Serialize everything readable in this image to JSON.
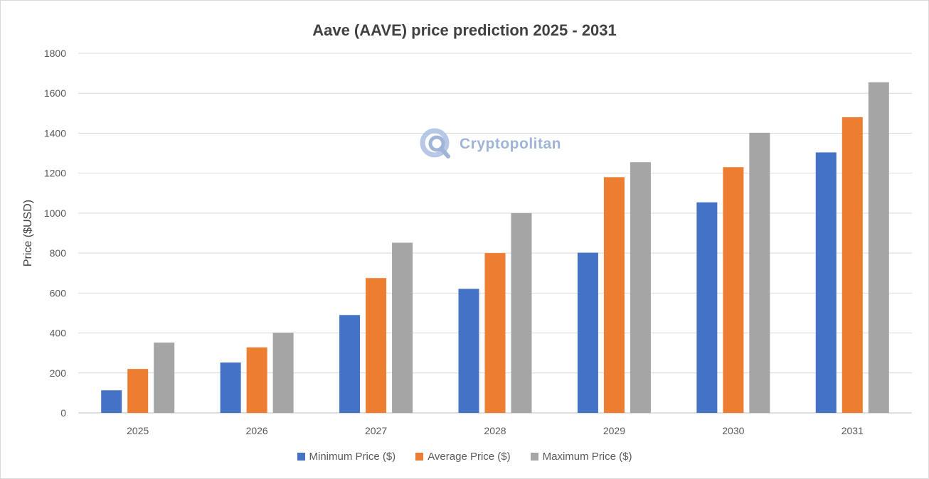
{
  "chart_data": {
    "type": "bar",
    "title": "Aave (AAVE) price prediction 2025 - 2031",
    "xlabel": "",
    "ylabel": "Price ($USD)",
    "ylim": [
      0,
      1800
    ],
    "yticks": [
      0,
      200,
      400,
      600,
      800,
      1000,
      1200,
      1400,
      1600,
      1800
    ],
    "grid": true,
    "legend_position": "bottom",
    "categories": [
      "2025",
      "2026",
      "2027",
      "2028",
      "2029",
      "2030",
      "2031"
    ],
    "series": [
      {
        "name": "Minimum Price ($)",
        "color": "#4472c4",
        "values": [
          113,
          252,
          490,
          621,
          802,
          1054,
          1304
        ]
      },
      {
        "name": "Average Price ($)",
        "color": "#ed7d31",
        "values": [
          220,
          328,
          675,
          800,
          1180,
          1230,
          1480
        ]
      },
      {
        "name": "Maximum Price ($)",
        "color": "#a5a5a5",
        "values": [
          352,
          402,
          852,
          1000,
          1255,
          1402,
          1655
        ]
      }
    ]
  },
  "watermark": {
    "text": "Cryptopolitan",
    "icon": "cryptopolitan-logo-icon",
    "color": "#9fb4d6"
  }
}
